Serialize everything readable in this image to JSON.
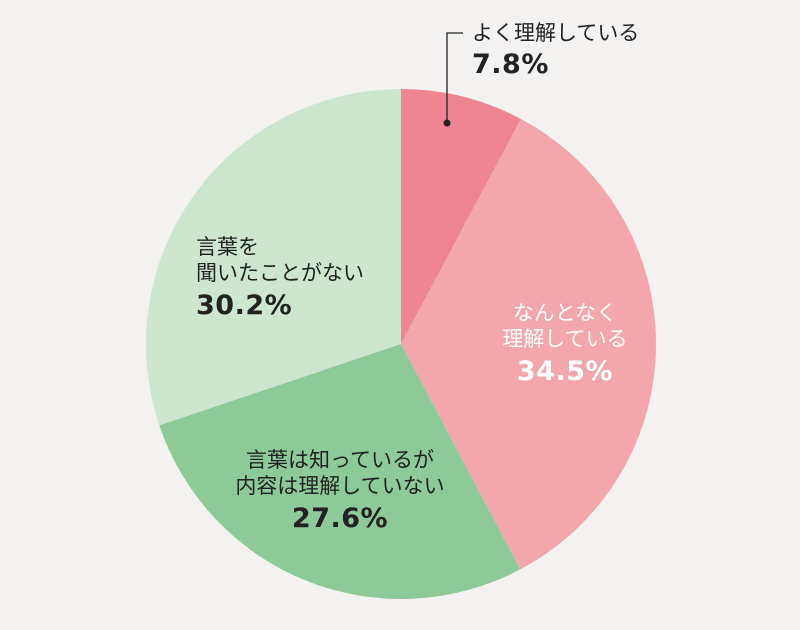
{
  "chart_data": {
    "type": "pie",
    "title": "",
    "start": "top",
    "direction": "clockwise",
    "slices": [
      {
        "lines": [
          "よく理解している"
        ],
        "value": 7.8,
        "value_label": "7.8%",
        "color": "#ef8590"
      },
      {
        "lines": [
          "なんとなく",
          "理解している"
        ],
        "value": 34.5,
        "value_label": "34.5%",
        "color": "#f3a7aa"
      },
      {
        "lines": [
          "言葉は知っているが",
          "内容は理解していない"
        ],
        "value": 27.6,
        "value_label": "27.6%",
        "color": "#8dca97"
      },
      {
        "lines": [
          "言葉を",
          "聞いたことがない"
        ],
        "value": 30.2,
        "value_label": "30.2%",
        "color": "#cce6d0"
      }
    ]
  }
}
